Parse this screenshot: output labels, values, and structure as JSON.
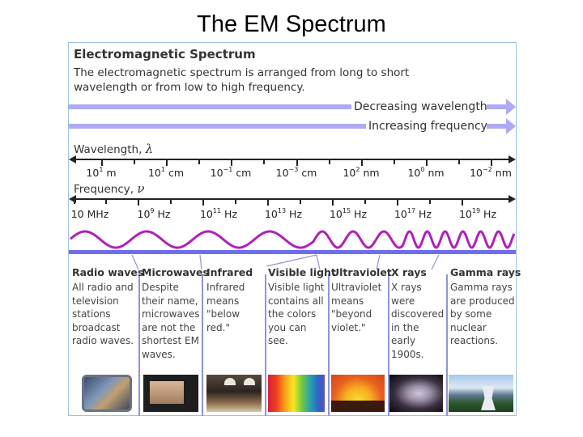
{
  "slide": {
    "title": "The EM Spectrum"
  },
  "panel": {
    "heading": "Electromagnetic Spectrum",
    "description": "The electromagnetic spectrum is arranged from long to short wavelength or from low to high frequency.",
    "arrows": [
      {
        "label": "Decreasing wavelength"
      },
      {
        "label": "Increasing frequency"
      }
    ],
    "colors": {
      "arrow": "#aeaaf3",
      "wave": "#b020b8",
      "band_bar": "#6d6ee8",
      "border": "#9cc2e5"
    }
  },
  "wavelength_axis": {
    "label": "Wavelength,",
    "symbol": "λ",
    "ticks": [
      {
        "base": "10",
        "exp": "1",
        "unit": "m"
      },
      {
        "base": "10",
        "exp": "1",
        "unit": "cm"
      },
      {
        "base": "10",
        "exp": "−1",
        "unit": "cm"
      },
      {
        "base": "10",
        "exp": "−3",
        "unit": "cm"
      },
      {
        "base": "10",
        "exp": "2",
        "unit": "nm"
      },
      {
        "base": "10",
        "exp": "0",
        "unit": "nm"
      },
      {
        "base": "10",
        "exp": "−2",
        "unit": "nm"
      }
    ]
  },
  "frequency_axis": {
    "label": "Frequency,",
    "symbol": "ν",
    "ticks": [
      {
        "base": "10 MHz",
        "exp": "",
        "unit": ""
      },
      {
        "base": "10",
        "exp": "9",
        "unit": "Hz"
      },
      {
        "base": "10",
        "exp": "11",
        "unit": "Hz"
      },
      {
        "base": "10",
        "exp": "13",
        "unit": "Hz"
      },
      {
        "base": "10",
        "exp": "15",
        "unit": "Hz"
      },
      {
        "base": "10",
        "exp": "17",
        "unit": "Hz"
      },
      {
        "base": "10",
        "exp": "19",
        "unit": "Hz"
      }
    ]
  },
  "bands": [
    {
      "name": "Radio waves",
      "text": "All radio and television stations broadcast radio waves.",
      "image": "tv-weather-broadcast-photo"
    },
    {
      "name": "Microwaves",
      "text": "Despite their name, microwaves are not the shortest EM waves.",
      "image": "microwave-oven-photo"
    },
    {
      "name": "Infrared",
      "text": "Infrared means \"below red.\"",
      "image": "heat-lamps-food-photo"
    },
    {
      "name": "Visible light",
      "text": "Visible light contains all the colors you can see.",
      "image": "rainbow-spectrum-photo"
    },
    {
      "name": "Ultraviolet",
      "text": "Ultraviolet means \"beyond violet.\"",
      "image": "sun-sunset-photo"
    },
    {
      "name": "X rays",
      "text": "X rays were discovered in the early 1900s.",
      "image": "hand-xray-photo"
    },
    {
      "name": "Gamma rays",
      "text": "Gamma rays are produced by some nuclear reactions.",
      "image": "nuclear-cooling-tower-photo"
    }
  ]
}
